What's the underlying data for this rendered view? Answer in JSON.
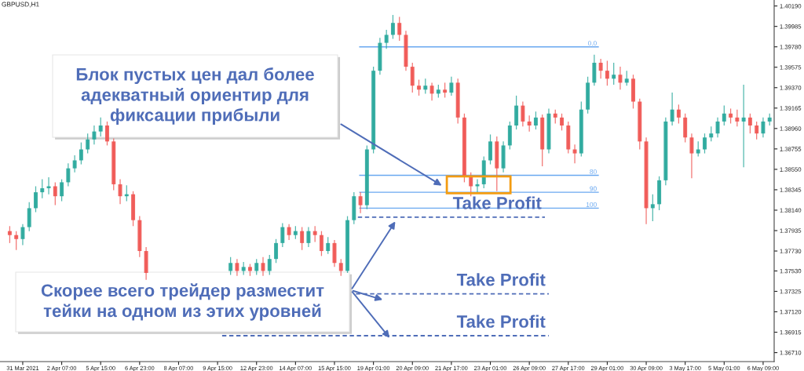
{
  "chart_data": {
    "type": "candlestick",
    "title": "GBPUSD,H1",
    "categories": [
      null,
      null,
      "31 Mar 2021",
      null,
      null,
      null,
      null,
      null,
      "2 Apr 07:00",
      null,
      null,
      null,
      null,
      null,
      "5 Apr 15:00",
      null,
      null,
      null,
      null,
      null,
      "6 Apr 23:00",
      null,
      null,
      null,
      null,
      null,
      "8 Apr 07:00",
      null,
      null,
      null,
      null,
      null,
      "9 Apr 15:00",
      null,
      null,
      null,
      null,
      null,
      "12 Apr 23:00",
      null,
      null,
      null,
      null,
      null,
      "14 Apr 07:00",
      null,
      null,
      null,
      null,
      null,
      "15 Apr 15:00",
      null,
      null,
      null,
      null,
      null,
      "19 Apr 01:00",
      null,
      null,
      null,
      null,
      null,
      "20 Apr 09:00",
      null,
      null,
      null,
      null,
      null,
      "21 Apr 17:00",
      null,
      null,
      null,
      null,
      null,
      "23 Apr 01:00",
      null,
      null,
      null,
      null,
      null,
      "26 Apr 09:00",
      null,
      null,
      null,
      null,
      null,
      "27 Apr 17:00",
      null,
      null,
      null,
      null,
      null,
      "29 Apr 01:00",
      null,
      null,
      null,
      null,
      null,
      "30 Apr 09:00",
      null,
      null,
      null,
      null,
      null,
      "3 May 17:00",
      null,
      null,
      null,
      null,
      null,
      "5 May 01:00",
      null,
      null,
      null,
      null,
      null,
      "6 May 09:00",
      null
    ],
    "ohlc": [
      [
        1.3793,
        1.3798,
        1.3781,
        1.3789
      ],
      [
        1.3789,
        1.3793,
        1.3774,
        1.3785
      ],
      [
        1.3785,
        1.38,
        1.3779,
        1.3797
      ],
      [
        1.3797,
        1.3822,
        1.3793,
        1.3816
      ],
      [
        1.3816,
        1.3838,
        1.3812,
        1.3832
      ],
      [
        1.3832,
        1.3845,
        1.3826,
        1.3836
      ],
      [
        1.3836,
        1.3847,
        1.383,
        1.3838
      ],
      [
        1.3838,
        1.3842,
        1.3819,
        1.3828
      ],
      [
        1.3828,
        1.3845,
        1.3823,
        1.3842
      ],
      [
        1.3842,
        1.3861,
        1.3838,
        1.3856
      ],
      [
        1.3856,
        1.3869,
        1.3852,
        1.3864
      ],
      [
        1.3864,
        1.3882,
        1.386,
        1.3875
      ],
      [
        1.3875,
        1.3891,
        1.3871,
        1.3885
      ],
      [
        1.3885,
        1.3899,
        1.388,
        1.3893
      ],
      [
        1.3893,
        1.3907,
        1.3888,
        1.3899
      ],
      [
        1.3899,
        1.3903,
        1.3879,
        1.3883
      ],
      [
        1.3883,
        1.3886,
        1.3834,
        1.384
      ],
      [
        1.384,
        1.3845,
        1.382,
        1.3828
      ],
      [
        1.3828,
        1.3839,
        1.3823,
        1.383
      ],
      [
        1.383,
        1.3833,
        1.3798,
        1.3804
      ],
      [
        1.3804,
        1.3808,
        1.3767,
        1.3773
      ],
      [
        1.3773,
        1.3777,
        1.3744,
        1.3751
      ],
      null,
      null,
      null,
      null,
      null,
      null,
      null,
      null,
      null,
      null,
      null,
      null,
      [
        1.3753,
        1.3767,
        1.3749,
        1.3761
      ],
      [
        1.3761,
        1.3765,
        1.3748,
        1.3753
      ],
      [
        1.3753,
        1.3762,
        1.3749,
        1.3757
      ],
      [
        1.3757,
        1.376,
        1.3748,
        1.3753
      ],
      [
        1.3753,
        1.3765,
        1.3749,
        1.3761
      ],
      [
        1.3761,
        1.3767,
        1.3748,
        1.3753
      ],
      [
        1.3753,
        1.3769,
        1.3749,
        1.3765
      ],
      [
        1.3765,
        1.3785,
        1.3761,
        1.3781
      ],
      [
        1.3781,
        1.3801,
        1.3777,
        1.3797
      ],
      [
        1.3797,
        1.38,
        1.3784,
        1.3789
      ],
      [
        1.3789,
        1.3798,
        1.3785,
        1.3793
      ],
      [
        1.3793,
        1.3797,
        1.3774,
        1.3781
      ],
      [
        1.3781,
        1.3797,
        1.3777,
        1.3793
      ],
      [
        1.3793,
        1.3798,
        1.3782,
        1.3789
      ],
      [
        1.3789,
        1.3793,
        1.3768,
        1.3773
      ],
      [
        1.3773,
        1.3787,
        1.377,
        1.3781
      ],
      [
        1.3781,
        1.3784,
        1.3757,
        1.3761
      ],
      [
        1.3761,
        1.3765,
        1.3748,
        1.3753
      ],
      [
        1.3753,
        1.3808,
        1.3751,
        1.3804
      ],
      [
        1.3804,
        1.3832,
        1.38,
        1.3828
      ],
      [
        1.3828,
        1.3832,
        1.3811,
        1.3819
      ],
      [
        1.3819,
        1.3879,
        1.3815,
        1.3875
      ],
      [
        1.3875,
        1.3958,
        1.3871,
        1.3954
      ],
      [
        1.3954,
        1.3987,
        1.395,
        1.3982
      ],
      [
        1.3982,
        1.3995,
        1.3976,
        1.399
      ],
      [
        1.399,
        1.401,
        1.3986,
        1.4002
      ],
      [
        1.4002,
        1.4008,
        1.3984,
        1.399
      ],
      [
        1.399,
        1.3994,
        1.3954,
        1.3958
      ],
      [
        1.3958,
        1.3962,
        1.3932,
        1.3939
      ],
      [
        1.3939,
        1.3945,
        1.3929,
        1.3935
      ],
      [
        1.3935,
        1.3946,
        1.3931,
        1.3939
      ],
      [
        1.3939,
        1.3942,
        1.3924,
        1.3931
      ],
      [
        1.3931,
        1.394,
        1.3927,
        1.3935
      ],
      [
        1.3935,
        1.3942,
        1.3927,
        1.3932
      ],
      [
        1.3932,
        1.3948,
        1.3929,
        1.3942
      ],
      [
        1.3942,
        1.3946,
        1.3901,
        1.3907
      ],
      [
        1.3907,
        1.3911,
        1.3842,
        1.3848
      ],
      [
        1.3848,
        1.3852,
        1.3828,
        1.3838
      ],
      [
        1.3838,
        1.3845,
        1.3832,
        1.384
      ],
      [
        1.384,
        1.3868,
        1.3836,
        1.3864
      ],
      [
        1.3864,
        1.389,
        1.386,
        1.3883
      ],
      [
        1.3883,
        1.3888,
        1.3833,
        1.3856
      ],
      [
        1.3856,
        1.3883,
        1.3852,
        1.3879
      ],
      [
        1.3879,
        1.3903,
        1.3875,
        1.3899
      ],
      [
        1.3899,
        1.3929,
        1.3895,
        1.3919
      ],
      [
        1.3919,
        1.3923,
        1.3898,
        1.3903
      ],
      [
        1.3903,
        1.3909,
        1.3893,
        1.3899
      ],
      [
        1.3899,
        1.3913,
        1.3895,
        1.3907
      ],
      [
        1.3907,
        1.391,
        1.3858,
        1.3875
      ],
      [
        1.3875,
        1.3916,
        1.3871,
        1.3911
      ],
      [
        1.3911,
        1.3915,
        1.3901,
        1.3907
      ],
      [
        1.3907,
        1.3911,
        1.3894,
        1.3899
      ],
      [
        1.3899,
        1.3903,
        1.3871,
        1.3875
      ],
      [
        1.3875,
        1.388,
        1.3861,
        1.3871
      ],
      [
        1.3871,
        1.3923,
        1.3868,
        1.3915
      ],
      [
        1.3915,
        1.3948,
        1.3911,
        1.3942
      ],
      [
        1.3942,
        1.397,
        1.3939,
        1.3962
      ],
      [
        1.3962,
        1.3966,
        1.3946,
        1.3954
      ],
      [
        1.3954,
        1.3964,
        1.3939,
        1.3946
      ],
      [
        1.3946,
        1.3962,
        1.394,
        1.395
      ],
      [
        1.395,
        1.3958,
        1.3935,
        1.3942
      ],
      [
        1.3942,
        1.3954,
        1.3939,
        1.3946
      ],
      [
        1.3946,
        1.395,
        1.3916,
        1.3923
      ],
      [
        1.3923,
        1.3926,
        1.3875,
        1.3883
      ],
      [
        1.3883,
        1.3887,
        1.38,
        1.3816
      ],
      [
        1.3816,
        1.383,
        1.3803,
        1.382
      ],
      [
        1.382,
        1.3848,
        1.3814,
        1.3844
      ],
      [
        1.3844,
        1.3907,
        1.3839,
        1.3903
      ],
      [
        1.3903,
        1.3932,
        1.3899,
        1.3915
      ],
      [
        1.3915,
        1.392,
        1.3901,
        1.3907
      ],
      [
        1.3907,
        1.3911,
        1.3882,
        1.3887
      ],
      [
        1.3887,
        1.3891,
        1.3846,
        1.3871
      ],
      [
        1.3871,
        1.3883,
        1.3868,
        1.3875
      ],
      [
        1.3875,
        1.3891,
        1.3871,
        1.3887
      ],
      [
        1.3887,
        1.3898,
        1.3883,
        1.3891
      ],
      [
        1.3891,
        1.3907,
        1.3887,
        1.3903
      ],
      [
        1.3903,
        1.3919,
        1.3899,
        1.3911
      ],
      [
        1.3911,
        1.3916,
        1.3901,
        1.3907
      ],
      [
        1.3907,
        1.3915,
        1.3898,
        1.3903
      ],
      [
        1.3903,
        1.394,
        1.3857,
        1.3907
      ],
      [
        1.3907,
        1.3911,
        1.3891,
        1.3899
      ],
      [
        1.3899,
        1.3903,
        1.3885,
        1.3891
      ],
      [
        1.3891,
        1.3907,
        1.3887,
        1.3903
      ],
      [
        1.3903,
        1.3911,
        1.3899,
        1.3907
      ]
    ],
    "ylim": [
      1.3662,
      1.4025
    ],
    "yticks": [
      {
        "value": 1.3671,
        "label": "1.36710"
      },
      {
        "value": 1.36915,
        "label": "1.36915"
      },
      {
        "value": 1.3712,
        "label": "1.37120"
      },
      {
        "value": 1.37325,
        "label": "1.37325"
      },
      {
        "value": 1.3753,
        "label": "1.37530"
      },
      {
        "value": 1.3773,
        "label": "1.37730"
      },
      {
        "value": 1.37935,
        "label": "1.37935"
      },
      {
        "value": 1.3814,
        "label": "1.38140"
      },
      {
        "value": 1.38345,
        "label": "1.38345"
      },
      {
        "value": 1.3855,
        "label": "1.38550"
      },
      {
        "value": 1.38755,
        "label": "1.38755"
      },
      {
        "value": 1.3896,
        "label": "1.38960"
      },
      {
        "value": 1.39165,
        "label": "1.39165"
      },
      {
        "value": 1.3937,
        "label": "1.39370"
      },
      {
        "value": 1.39575,
        "label": "1.39575"
      },
      {
        "value": 1.3978,
        "label": "1.39780"
      },
      {
        "value": 1.39985,
        "label": "1.39985"
      },
      {
        "value": 1.4019,
        "label": "1.40190"
      }
    ],
    "ref_lines": [
      {
        "axis": "y",
        "value": 1.3978,
        "color": "#6aa8f0",
        "line_style": "solid"
      },
      {
        "axis": "y",
        "value": 1.3849,
        "color": "#6aa8f0",
        "line_style": "solid"
      },
      {
        "axis": "y",
        "value": 1.3832,
        "color": "#6aa8f0",
        "line_style": "solid"
      },
      {
        "axis": "y",
        "value": 1.3816,
        "color": "#6aa8f0",
        "line_style": "solid"
      },
      {
        "axis": "y",
        "value": 1.3807,
        "label": "Take Profit",
        "color": "#4f6db8",
        "line_style": "dashed"
      },
      {
        "axis": "y",
        "value": 1.373,
        "label": "Take Profit",
        "color": "#4f6db8",
        "line_style": "dashed"
      },
      {
        "axis": "y",
        "value": 1.3688,
        "label": "Take Profit",
        "color": "#4f6db8",
        "line_style": "dashed"
      }
    ],
    "annotations": [
      "Блок пустых цен дал более адекватный ориентир для фиксации прибыли",
      "Скорее всего трейдер разместит тейки на одном из этих уровней",
      {
        "text": "0.0",
        "y": 1.3978
      },
      {
        "text": "80",
        "y": 1.3849
      },
      {
        "text": "90",
        "y": 1.3832
      },
      {
        "text": "100",
        "y": 1.3816
      }
    ]
  }
}
